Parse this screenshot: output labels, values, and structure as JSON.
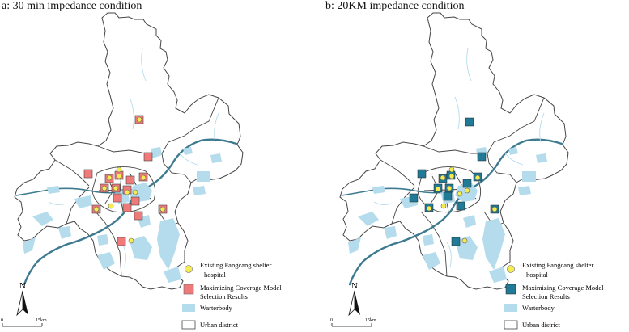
{
  "panels": [
    {
      "id": "a",
      "title": "a: 30 min impedance condition",
      "selection_color": "#f07a7a",
      "legend": {
        "existing": [
          "Existing Fangcang shelter",
          "hospital"
        ],
        "selection": [
          "Maximizing Coverage Model",
          "Selection Results"
        ],
        "waterbody": "Warterbody",
        "district": "Urban district"
      },
      "north_label": "N",
      "scale": {
        "start": "0",
        "end": "15km"
      }
    },
    {
      "id": "b",
      "title": "b: 20KM impedance condition",
      "selection_color": "#217a96",
      "legend": {
        "existing": [
          "Existing Fangcang shelter",
          "hospital"
        ],
        "selection": [
          "Maximizing Coverage Model",
          "Selection Results"
        ],
        "waterbody": "Warterbody",
        "district": "Urban district"
      },
      "north_label": "N",
      "scale": {
        "start": "0",
        "end": "15km"
      }
    }
  ],
  "colors": {
    "water": "#b4dcec",
    "river": "#3d7a90",
    "existing_hospital": "#f5ec52",
    "boundary": "#444444"
  }
}
